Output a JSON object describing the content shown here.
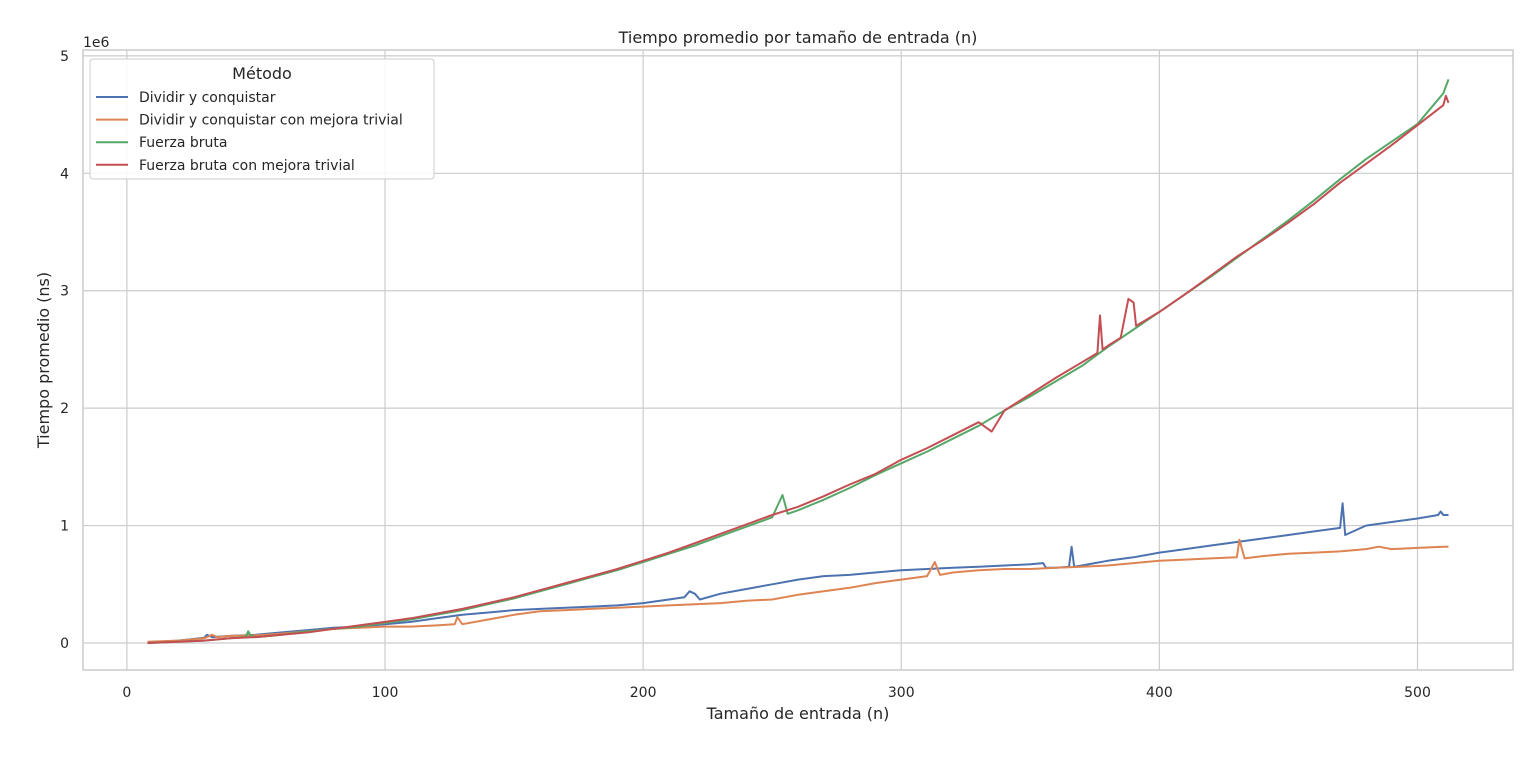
{
  "chart_data": {
    "type": "line",
    "title": "Tiempo promedio por tamaño de entrada (n)",
    "xlabel": "Tamaño de entrada (n)",
    "ylabel": "Tiempo promedio (ns)",
    "y_scale_label": "1e6",
    "xlim": [
      -17,
      537
    ],
    "ylim": [
      -0.23,
      5.05
    ],
    "x_ticks": [
      0,
      100,
      200,
      300,
      400,
      500
    ],
    "y_ticks": [
      0,
      1,
      2,
      3,
      4,
      5
    ],
    "x_tick_labels": [
      "0",
      "100",
      "200",
      "300",
      "400",
      "500"
    ],
    "y_tick_labels": [
      "0",
      "1",
      "2",
      "3",
      "4",
      "5"
    ],
    "grid": true,
    "legend_title": "Método",
    "legend_position": "top-left",
    "series": [
      {
        "name": "Dividir y conquistar",
        "color": "#4c72b0",
        "points": [
          [
            8,
            0.005
          ],
          [
            20,
            0.02
          ],
          [
            30,
            0.045
          ],
          [
            31,
            0.07
          ],
          [
            33,
            0.05
          ],
          [
            40,
            0.06
          ],
          [
            50,
            0.07
          ],
          [
            60,
            0.09
          ],
          [
            70,
            0.11
          ],
          [
            80,
            0.13
          ],
          [
            90,
            0.14
          ],
          [
            100,
            0.16
          ],
          [
            110,
            0.18
          ],
          [
            120,
            0.21
          ],
          [
            130,
            0.24
          ],
          [
            140,
            0.26
          ],
          [
            150,
            0.28
          ],
          [
            160,
            0.29
          ],
          [
            170,
            0.3
          ],
          [
            180,
            0.31
          ],
          [
            190,
            0.32
          ],
          [
            200,
            0.34
          ],
          [
            210,
            0.37
          ],
          [
            216,
            0.39
          ],
          [
            218,
            0.44
          ],
          [
            220,
            0.42
          ],
          [
            222,
            0.37
          ],
          [
            230,
            0.42
          ],
          [
            240,
            0.46
          ],
          [
            250,
            0.5
          ],
          [
            260,
            0.54
          ],
          [
            270,
            0.57
          ],
          [
            280,
            0.58
          ],
          [
            290,
            0.6
          ],
          [
            300,
            0.62
          ],
          [
            310,
            0.63
          ],
          [
            320,
            0.64
          ],
          [
            330,
            0.65
          ],
          [
            340,
            0.66
          ],
          [
            350,
            0.67
          ],
          [
            355,
            0.68
          ],
          [
            356,
            0.64
          ],
          [
            360,
            0.64
          ],
          [
            365,
            0.65
          ],
          [
            366,
            0.82
          ],
          [
            367,
            0.65
          ],
          [
            370,
            0.66
          ],
          [
            375,
            0.68
          ],
          [
            380,
            0.7
          ],
          [
            390,
            0.73
          ],
          [
            400,
            0.77
          ],
          [
            410,
            0.8
          ],
          [
            420,
            0.83
          ],
          [
            430,
            0.86
          ],
          [
            440,
            0.89
          ],
          [
            450,
            0.92
          ],
          [
            460,
            0.95
          ],
          [
            470,
            0.98
          ],
          [
            471,
            1.19
          ],
          [
            472,
            0.92
          ],
          [
            480,
            1.0
          ],
          [
            490,
            1.03
          ],
          [
            500,
            1.06
          ],
          [
            508,
            1.09
          ],
          [
            509,
            1.12
          ],
          [
            510,
            1.09
          ],
          [
            512,
            1.09
          ]
        ]
      },
      {
        "name": "Dividir y conquistar con mejora trivial",
        "color": "#dd8452",
        "points": [
          [
            8,
            0.01
          ],
          [
            20,
            0.02
          ],
          [
            30,
            0.04
          ],
          [
            33,
            0.07
          ],
          [
            35,
            0.05
          ],
          [
            40,
            0.06
          ],
          [
            50,
            0.065
          ],
          [
            60,
            0.08
          ],
          [
            70,
            0.1
          ],
          [
            80,
            0.12
          ],
          [
            90,
            0.13
          ],
          [
            100,
            0.14
          ],
          [
            110,
            0.14
          ],
          [
            120,
            0.15
          ],
          [
            127,
            0.16
          ],
          [
            128,
            0.22
          ],
          [
            130,
            0.16
          ],
          [
            140,
            0.2
          ],
          [
            150,
            0.24
          ],
          [
            160,
            0.27
          ],
          [
            170,
            0.28
          ],
          [
            180,
            0.29
          ],
          [
            190,
            0.3
          ],
          [
            200,
            0.31
          ],
          [
            210,
            0.32
          ],
          [
            220,
            0.33
          ],
          [
            230,
            0.34
          ],
          [
            240,
            0.36
          ],
          [
            250,
            0.37
          ],
          [
            260,
            0.41
          ],
          [
            270,
            0.44
          ],
          [
            280,
            0.47
          ],
          [
            290,
            0.51
          ],
          [
            300,
            0.54
          ],
          [
            310,
            0.57
          ],
          [
            313,
            0.69
          ],
          [
            315,
            0.58
          ],
          [
            320,
            0.6
          ],
          [
            330,
            0.62
          ],
          [
            340,
            0.63
          ],
          [
            350,
            0.63
          ],
          [
            360,
            0.64
          ],
          [
            370,
            0.65
          ],
          [
            380,
            0.66
          ],
          [
            390,
            0.68
          ],
          [
            400,
            0.7
          ],
          [
            410,
            0.71
          ],
          [
            420,
            0.72
          ],
          [
            430,
            0.73
          ],
          [
            431,
            0.88
          ],
          [
            433,
            0.72
          ],
          [
            440,
            0.74
          ],
          [
            450,
            0.76
          ],
          [
            460,
            0.77
          ],
          [
            470,
            0.78
          ],
          [
            480,
            0.8
          ],
          [
            485,
            0.82
          ],
          [
            490,
            0.8
          ],
          [
            500,
            0.81
          ],
          [
            510,
            0.82
          ],
          [
            512,
            0.82
          ]
        ]
      },
      {
        "name": "Fuerza bruta",
        "color": "#55a868",
        "points": [
          [
            8,
            0.0
          ],
          [
            20,
            0.01
          ],
          [
            30,
            0.02
          ],
          [
            40,
            0.04
          ],
          [
            46,
            0.05
          ],
          [
            47,
            0.1
          ],
          [
            48,
            0.06
          ],
          [
            50,
            0.05
          ],
          [
            60,
            0.07
          ],
          [
            70,
            0.1
          ],
          [
            80,
            0.12
          ],
          [
            90,
            0.14
          ],
          [
            100,
            0.17
          ],
          [
            110,
            0.2
          ],
          [
            120,
            0.24
          ],
          [
            130,
            0.28
          ],
          [
            140,
            0.33
          ],
          [
            150,
            0.38
          ],
          [
            160,
            0.44
          ],
          [
            170,
            0.5
          ],
          [
            180,
            0.56
          ],
          [
            190,
            0.62
          ],
          [
            200,
            0.69
          ],
          [
            210,
            0.76
          ],
          [
            220,
            0.83
          ],
          [
            230,
            0.91
          ],
          [
            240,
            0.99
          ],
          [
            250,
            1.07
          ],
          [
            254,
            1.26
          ],
          [
            256,
            1.1
          ],
          [
            260,
            1.13
          ],
          [
            270,
            1.22
          ],
          [
            280,
            1.32
          ],
          [
            290,
            1.43
          ],
          [
            300,
            1.53
          ],
          [
            310,
            1.63
          ],
          [
            320,
            1.74
          ],
          [
            330,
            1.85
          ],
          [
            340,
            1.98
          ],
          [
            350,
            2.1
          ],
          [
            360,
            2.23
          ],
          [
            370,
            2.36
          ],
          [
            380,
            2.52
          ],
          [
            390,
            2.67
          ],
          [
            400,
            2.82
          ],
          [
            410,
            2.97
          ],
          [
            420,
            3.12
          ],
          [
            430,
            3.28
          ],
          [
            440,
            3.44
          ],
          [
            450,
            3.6
          ],
          [
            460,
            3.77
          ],
          [
            470,
            3.95
          ],
          [
            480,
            4.12
          ],
          [
            490,
            4.27
          ],
          [
            500,
            4.42
          ],
          [
            505,
            4.55
          ],
          [
            510,
            4.68
          ],
          [
            512,
            4.8
          ]
        ]
      },
      {
        "name": "Fuerza bruta con mejora trivial",
        "color": "#c44e52",
        "points": [
          [
            8,
            0.0
          ],
          [
            20,
            0.01
          ],
          [
            30,
            0.02
          ],
          [
            40,
            0.04
          ],
          [
            50,
            0.05
          ],
          [
            60,
            0.07
          ],
          [
            70,
            0.09
          ],
          [
            80,
            0.12
          ],
          [
            90,
            0.15
          ],
          [
            100,
            0.18
          ],
          [
            110,
            0.21
          ],
          [
            120,
            0.25
          ],
          [
            130,
            0.29
          ],
          [
            140,
            0.34
          ],
          [
            150,
            0.39
          ],
          [
            160,
            0.45
          ],
          [
            170,
            0.51
          ],
          [
            180,
            0.57
          ],
          [
            190,
            0.63
          ],
          [
            200,
            0.7
          ],
          [
            210,
            0.77
          ],
          [
            220,
            0.85
          ],
          [
            230,
            0.93
          ],
          [
            240,
            1.01
          ],
          [
            250,
            1.09
          ],
          [
            260,
            1.16
          ],
          [
            270,
            1.25
          ],
          [
            280,
            1.35
          ],
          [
            290,
            1.44
          ],
          [
            300,
            1.56
          ],
          [
            310,
            1.66
          ],
          [
            320,
            1.77
          ],
          [
            330,
            1.88
          ],
          [
            335,
            1.8
          ],
          [
            340,
            1.98
          ],
          [
            350,
            2.12
          ],
          [
            360,
            2.26
          ],
          [
            370,
            2.39
          ],
          [
            376,
            2.47
          ],
          [
            377,
            2.79
          ],
          [
            378,
            2.5
          ],
          [
            380,
            2.53
          ],
          [
            385,
            2.6
          ],
          [
            388,
            2.93
          ],
          [
            390,
            2.9
          ],
          [
            391,
            2.7
          ],
          [
            400,
            2.82
          ],
          [
            410,
            2.97
          ],
          [
            420,
            3.13
          ],
          [
            430,
            3.29
          ],
          [
            440,
            3.43
          ],
          [
            450,
            3.58
          ],
          [
            460,
            3.74
          ],
          [
            470,
            3.92
          ],
          [
            480,
            4.08
          ],
          [
            490,
            4.24
          ],
          [
            500,
            4.41
          ],
          [
            510,
            4.58
          ],
          [
            511,
            4.66
          ],
          [
            512,
            4.6
          ]
        ]
      }
    ]
  }
}
